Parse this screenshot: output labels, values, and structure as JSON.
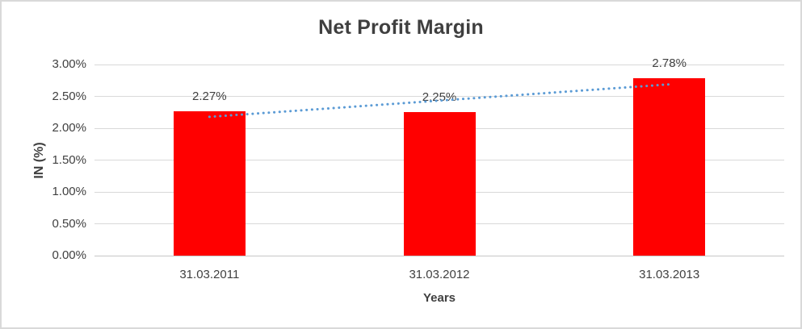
{
  "frame": {
    "background": "#ffffff",
    "border_color": "#d9d9d9"
  },
  "chart_data": {
    "type": "bar",
    "title": "Net Profit Margin",
    "xlabel": "Years",
    "ylabel": "IN (%)",
    "categories": [
      "31.03.2011",
      "31.03.2012",
      "31.03.2013"
    ],
    "values": [
      2.27,
      2.25,
      2.78
    ],
    "value_labels": [
      "2.27%",
      "2.25%",
      "2.78%"
    ],
    "yticks": [
      "0.00%",
      "0.50%",
      "1.00%",
      "1.50%",
      "2.00%",
      "2.50%",
      "3.00%"
    ],
    "ylim": [
      0,
      3.0
    ],
    "grid": true,
    "legend": "none",
    "bar_color": "#ff0000",
    "gridline_color": "#d9d9d9",
    "axis_line_color": "#c6c6c6",
    "text_color": "#404040",
    "trendline": {
      "type": "linear",
      "style": "dotted",
      "color": "#5b9bd5"
    }
  }
}
